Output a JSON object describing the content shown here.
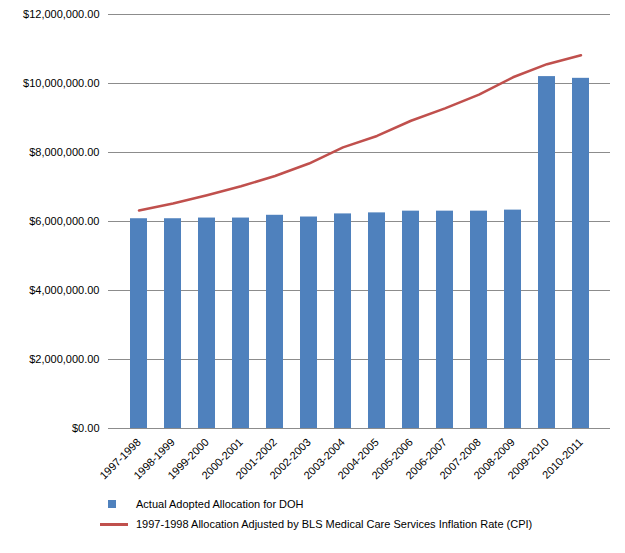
{
  "chart_data": {
    "type": "bar",
    "categories": [
      "1997-1998",
      "1998-1999",
      "1999-2000",
      "2000-2001",
      "2001-2002",
      "2002-2003",
      "2003-2004",
      "2004-2005",
      "2005-2006",
      "2006-2007",
      "2007-2008",
      "2008-2009",
      "2009-2010",
      "2010-2011"
    ],
    "series": [
      {
        "name": "Actual Adopted Allocation for DOH",
        "type": "bar",
        "color": "#4f81bd",
        "values": [
          6080000,
          6080000,
          6100000,
          6100000,
          6180000,
          6130000,
          6220000,
          6250000,
          6300000,
          6300000,
          6300000,
          6330000,
          10200000,
          10150000
        ]
      },
      {
        "name": "1997-1998 Allocation Adjusted by BLS Medical Care Services Inflation Rate (CPI)",
        "type": "line",
        "color": "#c0504d",
        "values": [
          6320000,
          6520000,
          6760000,
          7020000,
          7320000,
          7680000,
          8150000,
          8480000,
          8920000,
          9280000,
          9680000,
          10180000,
          10560000,
          10820000
        ]
      }
    ],
    "ylim": [
      0,
      12000000
    ],
    "yticks": [
      {
        "value": 0,
        "label": "$0.00"
      },
      {
        "value": 2000000,
        "label": "$2,000,000.00"
      },
      {
        "value": 4000000,
        "label": "$4,000,000.00"
      },
      {
        "value": 6000000,
        "label": "$6,000,000.00"
      },
      {
        "value": 8000000,
        "label": "$8,000,000.00"
      },
      {
        "value": 10000000,
        "label": "$10,000,000.00"
      },
      {
        "value": 12000000,
        "label": "$12,000,000.00"
      }
    ],
    "grid": true,
    "legend": "bottom"
  }
}
